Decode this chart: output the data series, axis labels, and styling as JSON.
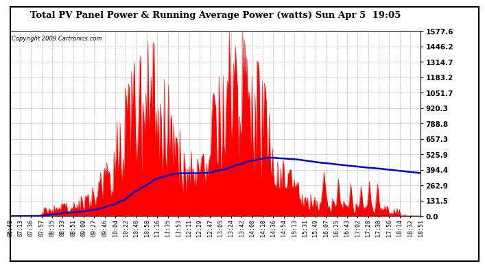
{
  "title": "Total PV Panel Power & Running Average Power (watts) Sun Apr 5  19:05",
  "copyright": "Copyright 2009 Cartronics.com",
  "background_color": "#ffffff",
  "plot_bg_color": "#ffffff",
  "grid_color": "#aaaaaa",
  "bar_color": "#ff0000",
  "line_color": "#0000cc",
  "y_ticks": [
    0.0,
    131.5,
    262.9,
    394.4,
    525.9,
    657.3,
    788.8,
    920.3,
    1051.7,
    1183.2,
    1314.7,
    1446.2,
    1577.6
  ],
  "ylim": [
    0,
    1577.6
  ],
  "x_labels": [
    "06:48",
    "07:13",
    "07:36",
    "07:57",
    "08:15",
    "08:33",
    "08:51",
    "09:09",
    "09:27",
    "09:46",
    "10:04",
    "10:22",
    "10:40",
    "10:58",
    "11:16",
    "11:35",
    "11:53",
    "12:11",
    "12:29",
    "12:47",
    "13:05",
    "13:24",
    "13:42",
    "14:00",
    "14:18",
    "14:36",
    "14:54",
    "15:13",
    "15:31",
    "15:49",
    "16:07",
    "16:25",
    "16:43",
    "17:02",
    "17:20",
    "17:38",
    "17:56",
    "18:14",
    "18:32",
    "18:51"
  ]
}
